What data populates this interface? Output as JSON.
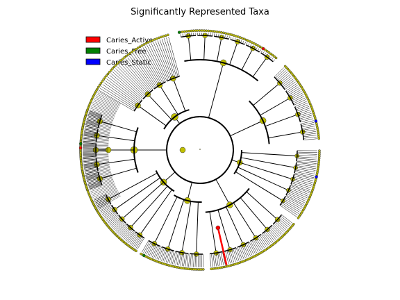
{
  "title": "Significantly Represented Taxa",
  "legend": [
    {
      "label": "Caries_Active",
      "color": "#ff0000"
    },
    {
      "label": "Caries_Free",
      "color": "#008000"
    },
    {
      "label": "Caries_Static",
      "color": "#0000ff"
    }
  ],
  "node_color": "#bfbf00",
  "node_stroke": "#333333",
  "highlight_colors": {
    "active": "#ff0000",
    "free": "#008000",
    "static": "#0000ff"
  }
}
